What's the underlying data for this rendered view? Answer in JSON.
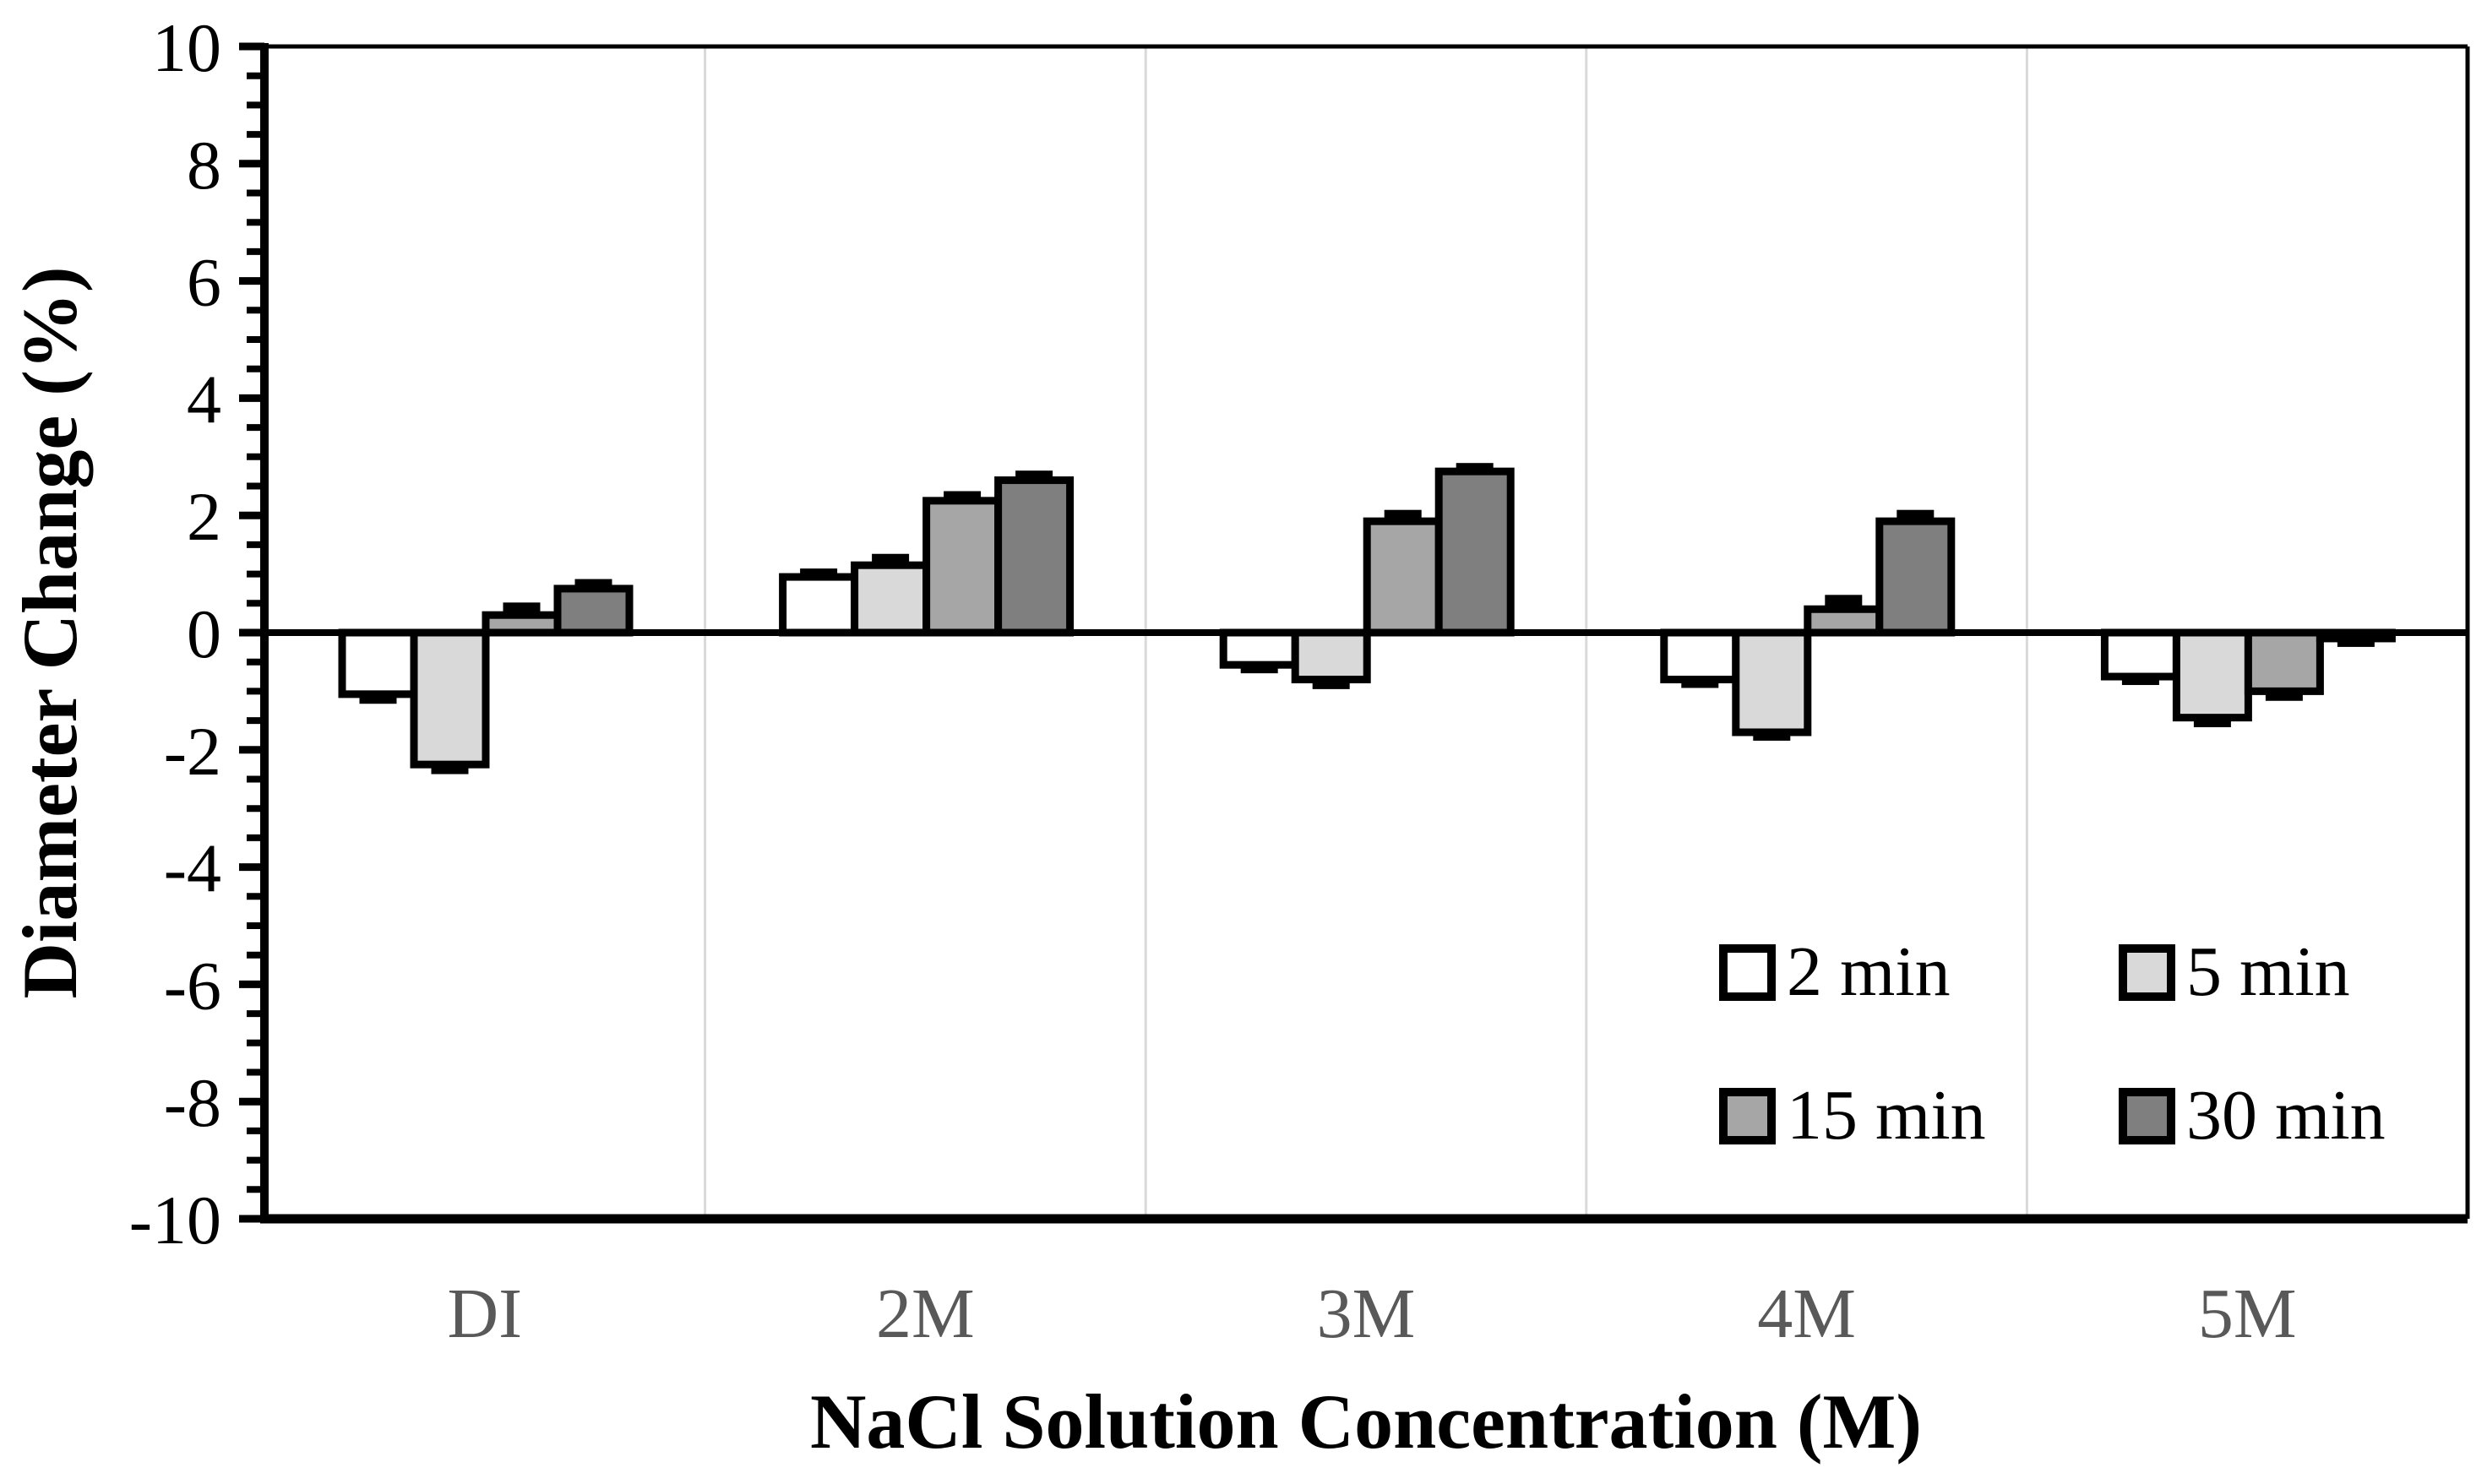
{
  "chart_data": {
    "type": "bar",
    "title": "",
    "xlabel": "NaCl Solution Concentration (M)",
    "ylabel": "Diameter Change (%)",
    "ylim": [
      -10,
      10
    ],
    "yticks": [
      10,
      8,
      6,
      4,
      2,
      0,
      -2,
      -4,
      -6,
      -8,
      -10
    ],
    "minor_tick_step": 0.5,
    "grid": "vertical-category-separators-only",
    "legend_position": "inside-bottom-right",
    "categories": [
      "DI",
      "2M",
      "3M",
      "4M",
      "5M"
    ],
    "series": [
      {
        "name": "2 min",
        "color": "#ffffff",
        "values": [
          -1.05,
          0.95,
          -0.55,
          -0.8,
          -0.75
        ],
        "errors": [
          0.07,
          0.05,
          0.05,
          0.05,
          0.05
        ]
      },
      {
        "name": "5 min",
        "color": "#d9d9d9",
        "values": [
          -2.25,
          1.15,
          -0.8,
          -1.7,
          -1.45
        ],
        "errors": [
          0.07,
          0.1,
          0.07,
          0.05,
          0.07
        ]
      },
      {
        "name": "15 min",
        "color": "#a6a6a6",
        "values": [
          0.3,
          2.25,
          1.9,
          0.4,
          -1.0
        ],
        "errors": [
          0.12,
          0.07,
          0.1,
          0.15,
          0.07
        ]
      },
      {
        "name": "30 min",
        "color": "#7f7f7f",
        "values": [
          0.75,
          2.6,
          2.75,
          1.9,
          -0.1
        ],
        "errors": [
          0.07,
          0.07,
          0.05,
          0.1,
          0.05
        ]
      }
    ]
  },
  "colors": {
    "axis": "#000000",
    "bar_border": "#000000",
    "error_cap": "#000000",
    "gridline": "#d9d9d9",
    "category_label": "#595959",
    "background": "#ffffff"
  }
}
